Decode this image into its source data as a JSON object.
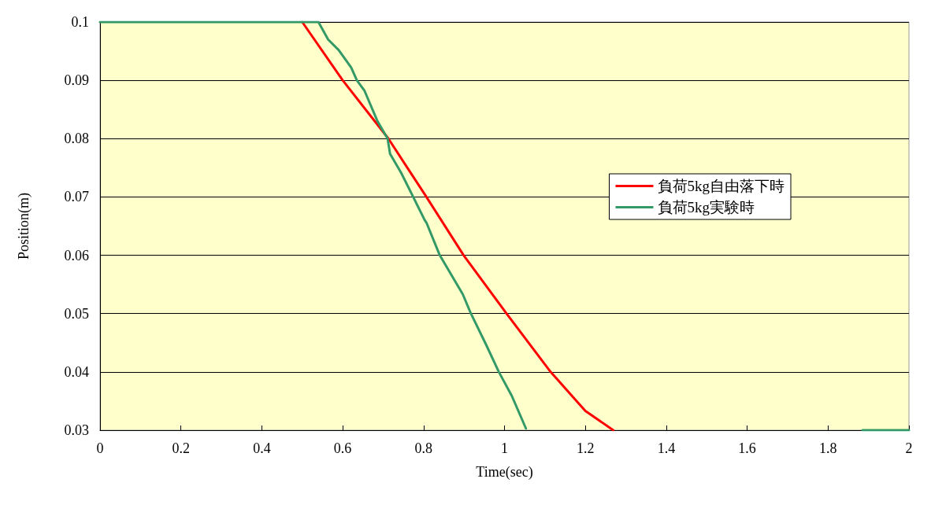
{
  "chart_data": {
    "type": "line",
    "xlabel": "Time(sec)",
    "ylabel": "Position(m)",
    "xlim": [
      0,
      2
    ],
    "xticks": [
      0,
      0.2,
      0.4,
      0.6,
      0.8,
      1,
      1.2,
      1.4,
      1.6,
      1.8,
      2
    ],
    "ylim": [
      0.03,
      0.1
    ],
    "yticks": [
      0.03,
      0.04,
      0.05,
      0.06,
      0.07,
      0.08,
      0.09,
      0.1
    ],
    "grid": "y",
    "legend": "right",
    "marker": "none",
    "series": [
      {
        "name": "負荷5kg自由落下時",
        "color": "#ff0000",
        "x": [
          0.5,
          0.6,
          0.713,
          0.807,
          0.899,
          1.005,
          1.114,
          1.2,
          1.269
        ],
        "values": [
          0.1,
          0.09,
          0.08,
          0.07,
          0.06,
          0.05,
          0.04,
          0.0333,
          0.03
        ]
      },
      {
        "name": "負荷5kg実験時",
        "color": "#339966",
        "x": [
          0,
          0.54,
          0.564,
          0.59,
          0.621,
          0.635,
          0.654,
          0.686,
          0.711,
          0.717,
          0.744,
          0.775,
          0.803,
          0.807,
          0.84,
          0.897,
          0.917,
          0.955,
          0.986,
          1.018,
          1.053,
          1.5,
          1.885,
          2
        ],
        "values": [
          0.1,
          0.1,
          0.097,
          0.0952,
          0.0922,
          0.09,
          0.0882,
          0.083,
          0.08,
          0.0774,
          0.0742,
          0.0699,
          0.066,
          0.0656,
          0.06,
          0.0533,
          0.05,
          0.0446,
          0.04,
          0.0359,
          0.0303,
          null,
          0.03,
          0.03
        ]
      }
    ]
  }
}
